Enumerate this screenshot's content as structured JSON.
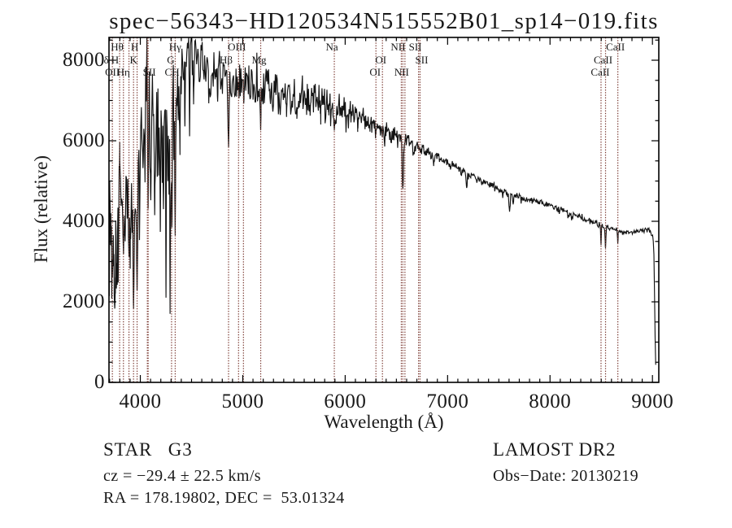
{
  "title": "spec−56343−HD120534N515552B01_sp14−019.fits",
  "axes": {
    "xlabel": "Wavelength (Å)",
    "ylabel": "Flux (relative)",
    "x_ticks": [
      4000,
      5000,
      6000,
      7000,
      8000,
      9000
    ],
    "y_ticks": [
      0,
      2000,
      4000,
      6000,
      8000
    ],
    "x_minor_step": 100,
    "y_minor_step": 500
  },
  "annotations": {
    "star_class": "STAR   G3",
    "survey": "LAMOST DR2",
    "cz": "cz = −29.4 ± 22.5 km/s",
    "obs_date": "Obs−Date: 20130219",
    "radec": "RA = 178.19802, DEC =  53.01324"
  },
  "line_color": "#7a3830",
  "spectral_lines": {
    "marked_wavelengths": [
      3727,
      3798,
      3835,
      3889,
      3933.7,
      3968.5,
      4068.6,
      4076.4,
      4305,
      4340.5,
      4861.3,
      4959,
      5006.8,
      5175.3,
      5893.9,
      6300.3,
      6363.8,
      6548.1,
      6562.8,
      6583.4,
      6716.4,
      6730.8,
      8498,
      8542.1,
      8662.1
    ],
    "labels": [
      {
        "t": "Hθ",
        "row": 1,
        "wl": 3798,
        "dx": -3
      },
      {
        "t": "H",
        "row": 1,
        "wl": 3945,
        "dx": 0
      },
      {
        "t": "Hγ",
        "row": 1,
        "wl": 4340,
        "dx": 0
      },
      {
        "t": "OIII",
        "row": 1,
        "wl": 4959,
        "dx": -2
      },
      {
        "t": "Na",
        "row": 1,
        "wl": 5894,
        "dx": -3
      },
      {
        "t": "NII",
        "row": 1,
        "wl": 6548,
        "dx": -4
      },
      {
        "t": "SII",
        "row": 1,
        "wl": 6716,
        "dx": -4
      },
      {
        "t": "CaII",
        "row": 1,
        "wl": 8662,
        "dx": -3
      },
      {
        "t": "δ",
        "row": 2,
        "wl": 3668,
        "dx": 0
      },
      {
        "t": "H",
        "row": 2,
        "wl": 3753,
        "dx": 0
      },
      {
        "t": "K",
        "row": 2,
        "wl": 3934,
        "dx": 0
      },
      {
        "t": "G",
        "row": 2,
        "wl": 4305,
        "dx": -1
      },
      {
        "t": "Hβ",
        "row": 2,
        "wl": 4861,
        "dx": -3
      },
      {
        "t": "Mg",
        "row": 2,
        "wl": 5175,
        "dx": -2
      },
      {
        "t": "OI",
        "row": 2,
        "wl": 6364,
        "dx": -2
      },
      {
        "t": "SII",
        "row": 2,
        "wl": 6731,
        "dx": 2
      },
      {
        "t": "CaII",
        "row": 2,
        "wl": 8542,
        "dx": -3
      },
      {
        "t": "OII",
        "row": 3,
        "wl": 3727,
        "dx": 0
      },
      {
        "t": "Hη",
        "row": 3,
        "wl": 3835,
        "dx": 0
      },
      {
        "t": "SII",
        "row": 3,
        "wl": 4072,
        "dx": 2
      },
      {
        "t": "CH",
        "row": 3,
        "wl": 4310,
        "dx": 0
      },
      {
        "t": "OI",
        "row": 3,
        "wl": 6300,
        "dx": -1
      },
      {
        "t": "NII",
        "row": 3,
        "wl": 6583,
        "dx": -4
      },
      {
        "t": "CaII",
        "row": 3,
        "wl": 8498,
        "dx": -1
      }
    ]
  },
  "chart_data": {
    "type": "line",
    "x_range": [
      3694,
      9062
    ],
    "y_range": [
      0,
      8566
    ],
    "step": 6,
    "step_blue": 3,
    "seed": 11,
    "zigzag": 0.5,
    "mean_anchors": [
      [
        3697,
        4100
      ],
      [
        3780,
        4500
      ],
      [
        3800,
        5000
      ],
      [
        3860,
        5100
      ],
      [
        3920,
        4900
      ],
      [
        3960,
        4600
      ],
      [
        3985,
        6000
      ],
      [
        4010,
        6400
      ],
      [
        4050,
        6550
      ],
      [
        4150,
        6650
      ],
      [
        4250,
        6750
      ],
      [
        4350,
        7000
      ],
      [
        4420,
        7900
      ],
      [
        4460,
        8150
      ],
      [
        4510,
        8250
      ],
      [
        4550,
        8150
      ],
      [
        4620,
        7950
      ],
      [
        4700,
        7800
      ],
      [
        4800,
        7720
      ],
      [
        4900,
        7650
      ],
      [
        5000,
        7600
      ],
      [
        5100,
        7520
      ],
      [
        5200,
        7450
      ],
      [
        5300,
        7380
      ],
      [
        5400,
        7300
      ],
      [
        5500,
        7250
      ],
      [
        5600,
        7180
      ],
      [
        5700,
        7100
      ],
      [
        5800,
        7000
      ],
      [
        5900,
        6900
      ],
      [
        6000,
        6780
      ],
      [
        6100,
        6650
      ],
      [
        6200,
        6520
      ],
      [
        6300,
        6400
      ],
      [
        6400,
        6280
      ],
      [
        6500,
        6160
      ],
      [
        6560,
        6080
      ],
      [
        6600,
        6030
      ],
      [
        6700,
        5900
      ],
      [
        6800,
        5760
      ],
      [
        6900,
        5610
      ],
      [
        7000,
        5480
      ],
      [
        7100,
        5350
      ],
      [
        7200,
        5220
      ],
      [
        7300,
        5080
      ],
      [
        7400,
        4940
      ],
      [
        7500,
        4820
      ],
      [
        7600,
        4720
      ],
      [
        7700,
        4620
      ],
      [
        7800,
        4530
      ],
      [
        7900,
        4480
      ],
      [
        8000,
        4410
      ],
      [
        8100,
        4300
      ],
      [
        8200,
        4210
      ],
      [
        8300,
        4110
      ],
      [
        8400,
        4010
      ],
      [
        8500,
        3920
      ],
      [
        8600,
        3820
      ],
      [
        8700,
        3760
      ],
      [
        8800,
        3720
      ],
      [
        8900,
        3790
      ],
      [
        8950,
        3830
      ],
      [
        9000,
        3700
      ],
      [
        9012,
        3500
      ],
      [
        9020,
        2300
      ],
      [
        9028,
        700
      ],
      [
        9036,
        150
      ]
    ],
    "noise_amp_anchors": [
      [
        3697,
        2200
      ],
      [
        3780,
        1700
      ],
      [
        3800,
        1050
      ],
      [
        3960,
        950
      ],
      [
        4000,
        1300
      ],
      [
        4020,
        1400
      ],
      [
        4300,
        1350
      ],
      [
        4360,
        1100
      ],
      [
        4420,
        620
      ],
      [
        4500,
        520
      ],
      [
        4700,
        460
      ],
      [
        5000,
        440
      ],
      [
        5200,
        400
      ],
      [
        5400,
        380
      ],
      [
        5700,
        360
      ],
      [
        5900,
        330
      ],
      [
        6000,
        260
      ],
      [
        6100,
        230
      ],
      [
        6300,
        200
      ],
      [
        6560,
        160
      ],
      [
        6700,
        130
      ],
      [
        7000,
        85
      ],
      [
        7300,
        70
      ],
      [
        7600,
        60
      ],
      [
        8000,
        55
      ],
      [
        8500,
        48
      ],
      [
        9000,
        45
      ],
      [
        9036,
        40
      ]
    ],
    "floor_anchors": [
      [
        3694,
        1650
      ],
      [
        3790,
        2500
      ],
      [
        3990,
        3000
      ],
      [
        4010,
        4200
      ],
      [
        4360,
        4700
      ],
      [
        4420,
        6400
      ],
      [
        4500,
        6800
      ],
      [
        4700,
        7100
      ],
      [
        5000,
        7000
      ],
      [
        5200,
        6900
      ],
      [
        5300,
        6700
      ],
      [
        5400,
        6600
      ],
      [
        5600,
        6500
      ],
      [
        5800,
        6350
      ],
      [
        5900,
        6250
      ],
      [
        6000,
        6200
      ],
      [
        6150,
        6050
      ],
      [
        6300,
        5900
      ],
      [
        6500,
        5750
      ],
      [
        6560,
        5700
      ],
      [
        6700,
        5550
      ],
      [
        6800,
        5400
      ],
      [
        6900,
        5300
      ],
      [
        7000,
        5100
      ],
      [
        7200,
        4900
      ],
      [
        7400,
        4700
      ],
      [
        7600,
        4400
      ],
      [
        7800,
        4300
      ],
      [
        8000,
        4100
      ],
      [
        8200,
        3950
      ],
      [
        8400,
        3800
      ],
      [
        8500,
        3700
      ],
      [
        8700,
        3500
      ],
      [
        8900,
        3550
      ],
      [
        9000,
        3400
      ],
      [
        9014,
        80
      ],
      [
        9036,
        80
      ]
    ],
    "absorption_features": [
      [
        3727,
        2600,
        8
      ],
      [
        3750,
        1800,
        10
      ],
      [
        3770,
        2500,
        8
      ],
      [
        3835,
        3150,
        9
      ],
      [
        3852,
        3500,
        5
      ],
      [
        3889,
        3100,
        9
      ],
      [
        3905,
        3500,
        6
      ],
      [
        3934,
        1800,
        8
      ],
      [
        3969,
        2250,
        8
      ],
      [
        4026,
        5300,
        6
      ],
      [
        4102,
        4500,
        6
      ],
      [
        4140,
        4100,
        5
      ],
      [
        4195,
        3700,
        4
      ],
      [
        4226,
        4300,
        6
      ],
      [
        4251,
        2100,
        4
      ],
      [
        4290,
        1700,
        4
      ],
      [
        4308,
        3800,
        6
      ],
      [
        4340,
        3650,
        6
      ],
      [
        4384,
        6350,
        6
      ],
      [
        4435,
        6300,
        4
      ],
      [
        4481,
        6100,
        4
      ],
      [
        4520,
        6900,
        4
      ],
      [
        4668,
        6900,
        4
      ],
      [
        4755,
        6950,
        4
      ],
      [
        4861,
        5840,
        9
      ],
      [
        5010,
        6890,
        4
      ],
      [
        5100,
        7000,
        4
      ],
      [
        5175,
        6240,
        5
      ],
      [
        5270,
        6900,
        7
      ],
      [
        5430,
        6800,
        4
      ],
      [
        5530,
        6600,
        4
      ],
      [
        5660,
        6800,
        4
      ],
      [
        5760,
        6700,
        4
      ],
      [
        5840,
        6900,
        4
      ],
      [
        5894,
        6240,
        9
      ],
      [
        6122,
        6400,
        4
      ],
      [
        6240,
        6300,
        4
      ],
      [
        6300,
        6150,
        4
      ],
      [
        6435,
        6000,
        4
      ],
      [
        6563,
        4770,
        10
      ],
      [
        6869,
        5450,
        8
      ],
      [
        7186,
        4820,
        10
      ],
      [
        7605,
        4230,
        10
      ],
      [
        7640,
        4380,
        8
      ],
      [
        8498,
        3400,
        4.5
      ],
      [
        8542,
        3280,
        5.5
      ],
      [
        8662,
        3400,
        4.5
      ]
    ],
    "upper_spikes": [
      [
        4462,
        8480,
        6
      ],
      [
        4497,
        8560,
        6
      ],
      [
        4538,
        8500,
        5
      ],
      [
        4560,
        8350,
        5
      ]
    ]
  }
}
